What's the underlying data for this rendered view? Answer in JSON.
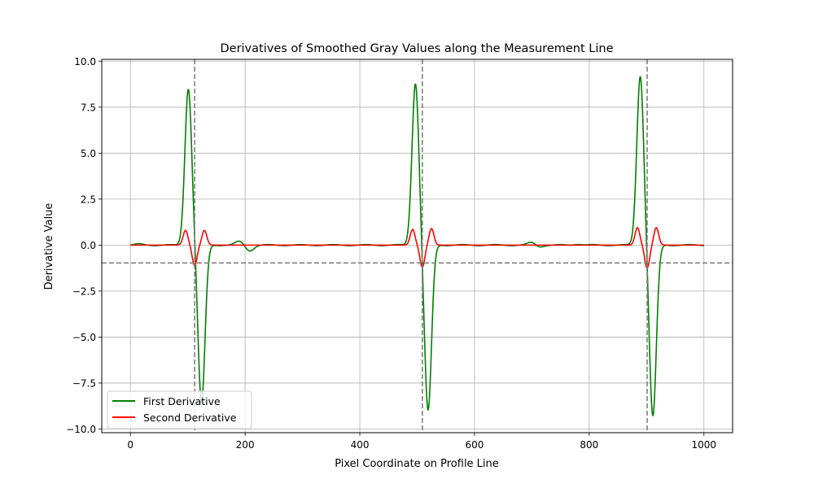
{
  "chart_data": {
    "type": "line",
    "title": "Derivatives of Smoothed Gray Values along the Measurement Line",
    "xlabel": "Pixel Coordinate on Profile Line",
    "ylabel": "Derivative Value",
    "xlim": [
      -50,
      1050
    ],
    "ylim": [
      -10.2,
      10.1
    ],
    "xticks": [
      0,
      200,
      400,
      600,
      800,
      1000
    ],
    "xtick_labels": [
      "0",
      "200",
      "400",
      "600",
      "800",
      "1000"
    ],
    "yticks": [
      -10.0,
      -7.5,
      -5.0,
      -2.5,
      0.0,
      2.5,
      5.0,
      7.5,
      10.0
    ],
    "ytick_labels": [
      "−10.0",
      "−7.5",
      "−5.0",
      "−2.5",
      "0.0",
      "2.5",
      "5.0",
      "7.5",
      "10.0"
    ],
    "grid": true,
    "legend_position": "lower-left",
    "series": [
      {
        "name": "First Derivative",
        "color": "#008000",
        "edges": [
          {
            "peak_x": 101,
            "peak_y": 8.5,
            "trough_x": 124,
            "trough_y": -8.6
          },
          {
            "peak_x": 497,
            "peak_y": 8.8,
            "trough_x": 519,
            "trough_y": -9.0
          },
          {
            "peak_x": 889,
            "peak_y": 9.2,
            "trough_x": 911,
            "trough_y": -9.3
          }
        ],
        "ripples": [
          {
            "x": 15,
            "y": 0.05
          },
          {
            "x": 190,
            "y": 0.2
          },
          {
            "x": 208,
            "y": -0.3
          },
          {
            "x": 700,
            "y": 0.15
          },
          {
            "x": 712,
            "y": -0.1
          },
          {
            "x": 780,
            "y": 0.06
          }
        ]
      },
      {
        "name": "Second Derivative",
        "color": "#ff0000",
        "edges": [
          {
            "pos_x": 96,
            "pos_y": 0.8,
            "neg_x": 112,
            "neg_y": -1.1,
            "pos2_x": 129,
            "pos2_y": 0.8
          },
          {
            "pos_x": 492,
            "pos_y": 0.85,
            "neg_x": 509,
            "neg_y": -1.2,
            "pos2_x": 525,
            "pos2_y": 0.9
          },
          {
            "pos_x": 884,
            "pos_y": 0.95,
            "neg_x": 901,
            "neg_y": -1.25,
            "pos2_x": 917,
            "pos2_y": 0.95
          }
        ]
      }
    ],
    "reference_lines": {
      "vertical_x": [
        112,
        509,
        901
      ],
      "horizontal_y": -0.97,
      "color": "#808080",
      "style": "dashed"
    }
  }
}
